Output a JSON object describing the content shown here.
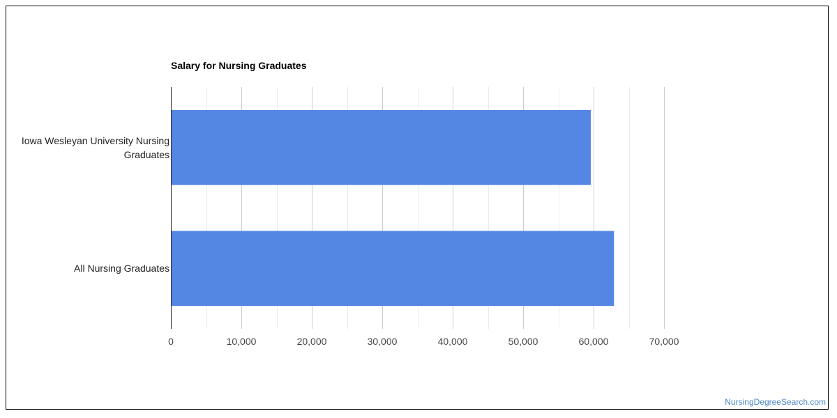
{
  "chart_data": {
    "type": "bar",
    "orientation": "horizontal",
    "title": "Salary for Nursing Graduates",
    "categories": [
      "Iowa Wesleyan University Nursing Graduates",
      "All Nursing Graduates"
    ],
    "category_labels": [
      "Iowa Wesleyan University Nursing\nGraduates",
      "All Nursing Graduates"
    ],
    "values": [
      59600,
      62900
    ],
    "xlim": [
      0,
      70000
    ],
    "x_ticks": [
      0,
      10000,
      20000,
      30000,
      40000,
      50000,
      60000,
      70000
    ],
    "x_tick_labels": [
      "0",
      "10,000",
      "20,000",
      "30,000",
      "40,000",
      "50,000",
      "60,000",
      "70,000"
    ],
    "grid": true,
    "bar_color": "#5486e3",
    "grid_major_color": "#cccccc",
    "grid_minor_color": "#ebebeb"
  },
  "watermark": "NursingDegreeSearch.com"
}
